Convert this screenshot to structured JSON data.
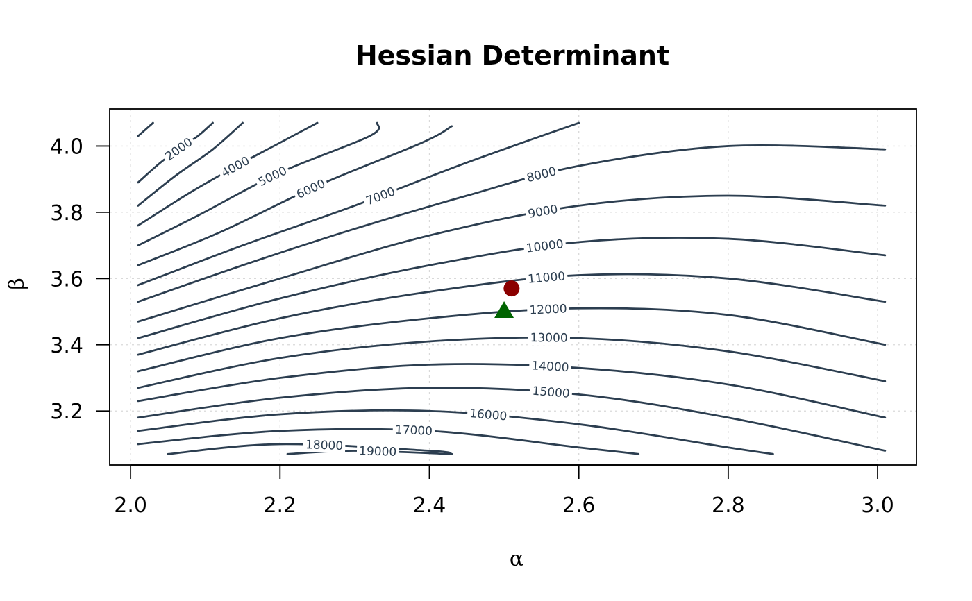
{
  "chart_data": {
    "type": "contour",
    "title": "Hessian Determinant",
    "xlabel": "α",
    "ylabel": "β",
    "xlim": [
      1.972,
      3.052
    ],
    "ylim": [
      3.037,
      4.112
    ],
    "x_ticks": [
      "2.0",
      "2.2",
      "2.4",
      "2.6",
      "2.8",
      "3.0"
    ],
    "y_ticks": [
      "3.2",
      "3.4",
      "3.6",
      "3.8",
      "4.0"
    ],
    "grid": true,
    "contour_levels": [
      {
        "level": 1000,
        "points": [
          [
            2.01,
            4.03
          ],
          [
            2.03,
            4.07
          ]
        ]
      },
      {
        "level": 2000,
        "label": "2000",
        "points": [
          [
            2.01,
            3.89
          ],
          [
            2.04,
            3.95
          ],
          [
            2.07,
            4.0
          ],
          [
            2.09,
            4.03
          ],
          [
            2.11,
            4.07
          ]
        ]
      },
      {
        "level": 3000,
        "points": [
          [
            2.01,
            3.82
          ],
          [
            2.06,
            3.91
          ],
          [
            2.11,
            3.99
          ],
          [
            2.15,
            4.07
          ]
        ]
      },
      {
        "level": 4000,
        "label": "4000",
        "points": [
          [
            2.01,
            3.76
          ],
          [
            2.08,
            3.86
          ],
          [
            2.15,
            3.95
          ],
          [
            2.2,
            4.01
          ],
          [
            2.25,
            4.07
          ]
        ]
      },
      {
        "level": 5000,
        "label": "5000",
        "points": [
          [
            2.01,
            3.7
          ],
          [
            2.09,
            3.79
          ],
          [
            2.2,
            3.92
          ],
          [
            2.32,
            4.03
          ],
          [
            2.33,
            4.07
          ]
        ]
      },
      {
        "level": 6000,
        "label": "6000",
        "points": [
          [
            2.01,
            3.64
          ],
          [
            2.12,
            3.74
          ],
          [
            2.25,
            3.88
          ],
          [
            2.39,
            4.01
          ],
          [
            2.43,
            4.06
          ]
        ]
      },
      {
        "level": 7000,
        "label": "7000",
        "points": [
          [
            2.01,
            3.58
          ],
          [
            2.15,
            3.7
          ],
          [
            2.3,
            3.82
          ],
          [
            2.45,
            3.95
          ],
          [
            2.6,
            4.07
          ]
        ]
      },
      {
        "level": 8000,
        "label": "8000",
        "points": [
          [
            2.01,
            3.53
          ],
          [
            2.15,
            3.64
          ],
          [
            2.3,
            3.75
          ],
          [
            2.45,
            3.85
          ],
          [
            2.6,
            3.94
          ],
          [
            2.8,
            4.0
          ],
          [
            3.01,
            3.99
          ]
        ]
      },
      {
        "level": 9000,
        "label": "9000",
        "points": [
          [
            2.01,
            3.47
          ],
          [
            2.2,
            3.6
          ],
          [
            2.4,
            3.73
          ],
          [
            2.6,
            3.82
          ],
          [
            2.8,
            3.85
          ],
          [
            3.01,
            3.82
          ]
        ]
      },
      {
        "level": 10000,
        "label": "10000",
        "points": [
          [
            2.01,
            3.42
          ],
          [
            2.2,
            3.54
          ],
          [
            2.4,
            3.64
          ],
          [
            2.6,
            3.71
          ],
          [
            2.8,
            3.72
          ],
          [
            3.01,
            3.67
          ]
        ]
      },
      {
        "level": 11000,
        "label": "11000",
        "points": [
          [
            2.01,
            3.37
          ],
          [
            2.2,
            3.48
          ],
          [
            2.4,
            3.56
          ],
          [
            2.6,
            3.61
          ],
          [
            2.8,
            3.6
          ],
          [
            3.01,
            3.53
          ]
        ]
      },
      {
        "level": 12000,
        "label": "12000",
        "points": [
          [
            2.01,
            3.32
          ],
          [
            2.2,
            3.42
          ],
          [
            2.4,
            3.48
          ],
          [
            2.6,
            3.51
          ],
          [
            2.8,
            3.49
          ],
          [
            3.01,
            3.4
          ]
        ]
      },
      {
        "level": 13000,
        "label": "13000",
        "points": [
          [
            2.01,
            3.27
          ],
          [
            2.2,
            3.36
          ],
          [
            2.4,
            3.41
          ],
          [
            2.6,
            3.42
          ],
          [
            2.8,
            3.38
          ],
          [
            3.01,
            3.29
          ]
        ]
      },
      {
        "level": 14000,
        "label": "14000",
        "points": [
          [
            2.01,
            3.23
          ],
          [
            2.2,
            3.3
          ],
          [
            2.4,
            3.34
          ],
          [
            2.6,
            3.33
          ],
          [
            2.8,
            3.28
          ],
          [
            3.01,
            3.18
          ]
        ]
      },
      {
        "level": 15000,
        "label": "15000",
        "points": [
          [
            2.01,
            3.18
          ],
          [
            2.2,
            3.24
          ],
          [
            2.4,
            3.27
          ],
          [
            2.6,
            3.25
          ],
          [
            2.8,
            3.18
          ],
          [
            3.01,
            3.08
          ]
        ]
      },
      {
        "level": 16000,
        "label": "16000",
        "points": [
          [
            2.01,
            3.14
          ],
          [
            2.2,
            3.19
          ],
          [
            2.4,
            3.2
          ],
          [
            2.6,
            3.16
          ],
          [
            2.8,
            3.09
          ],
          [
            2.86,
            3.07
          ]
        ]
      },
      {
        "level": 17000,
        "label": "17000",
        "points": [
          [
            2.01,
            3.1
          ],
          [
            2.2,
            3.14
          ],
          [
            2.4,
            3.14
          ],
          [
            2.6,
            3.09
          ],
          [
            2.68,
            3.07
          ]
        ]
      },
      {
        "level": 18000,
        "label": "18000",
        "points": [
          [
            2.05,
            3.07
          ],
          [
            2.2,
            3.1
          ],
          [
            2.4,
            3.08
          ],
          [
            2.43,
            3.07
          ]
        ]
      },
      {
        "level": 19000,
        "label": "19000",
        "points": [
          [
            2.21,
            3.07
          ],
          [
            2.3,
            3.08
          ],
          [
            2.43,
            3.07
          ]
        ]
      }
    ],
    "markers": [
      {
        "shape": "circle",
        "color": "#8b0000",
        "x": 2.51,
        "y": 3.57
      },
      {
        "shape": "triangle",
        "color": "#006400",
        "x": 2.5,
        "y": 3.5
      }
    ],
    "line_color": "#2c3e50"
  }
}
